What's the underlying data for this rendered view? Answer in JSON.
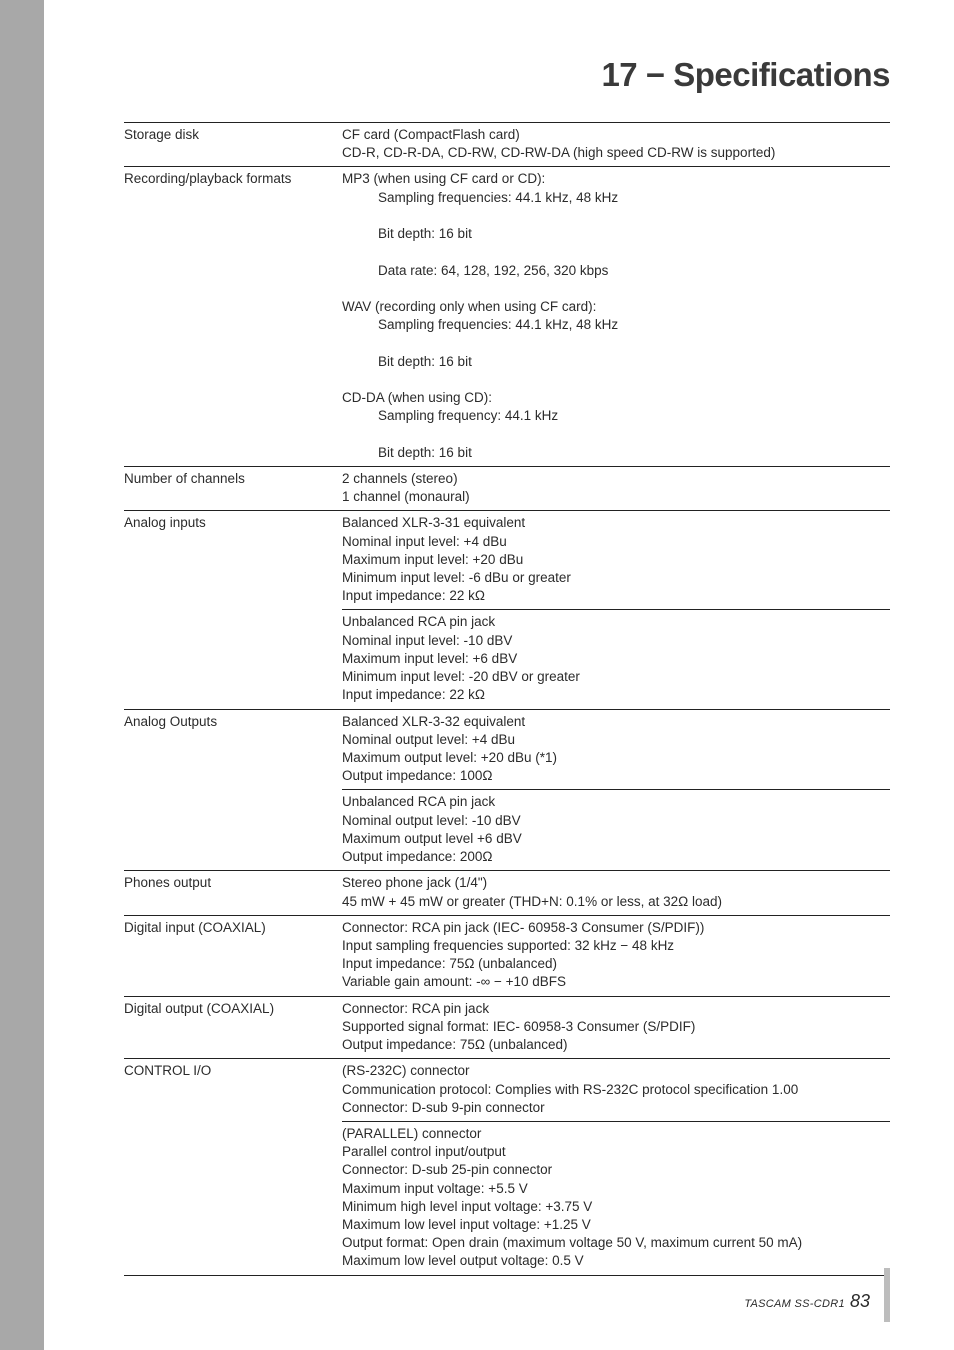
{
  "title": "17 − Specifications",
  "rows": [
    {
      "label": "Storage disk",
      "type": "top",
      "value": "CF card (CompactFlash card)\nCD-R, CD-R-DA, CD-RW, CD-RW-DA (high speed CD-RW is supported)"
    },
    {
      "label": "Recording/playback formats",
      "type": "top",
      "value": "MP3 (when using CF card or CD):\n<ind>Sampling frequencies: 44.1 kHz, 48 kHz</ind>\n<ind>Bit depth: 16 bit</ind>\n<ind>Data rate: 64, 128, 192, 256, 320 kbps</ind>\nWAV (recording only when using CF card):\n<ind>Sampling frequencies: 44.1 kHz, 48 kHz</ind>\n<ind>Bit depth: 16 bit</ind>\nCD-DA (when using CD):\n<ind>Sampling frequency: 44.1 kHz</ind>\n<ind>Bit depth: 16 bit</ind>"
    },
    {
      "label": "Number of channels",
      "type": "top",
      "value": "2 channels (stereo)\n1 channel (monaural)"
    },
    {
      "label": "Analog inputs",
      "type": "top",
      "value": "Balanced XLR-3-31 equivalent\nNominal input level: +4 dBu\nMaximum input level: +20 dBu\nMinimum input level: -6 dBu or greater\nInput impedance: 22 kΩ"
    },
    {
      "label": "",
      "type": "sub",
      "value": "Unbalanced RCA pin jack\nNominal input level: -10 dBV\nMaximum input level: +6 dBV\nMinimum input level: -20 dBV or greater\nInput impedance: 22 kΩ"
    },
    {
      "label": "Analog Outputs",
      "type": "top",
      "value": "Balanced XLR-3-32 equivalent\nNominal output level: +4 dBu\nMaximum output level: +20 dBu (*1)\nOutput impedance: 100Ω"
    },
    {
      "label": "",
      "type": "sub",
      "value": "Unbalanced RCA pin jack\nNominal output level: -10 dBV\nMaximum output level +6 dBV\nOutput impedance: 200Ω"
    },
    {
      "label": "Phones output",
      "type": "top",
      "value": "Stereo phone jack (1/4\")\n45 mW + 45 mW or greater (THD+N: 0.1% or less, at 32Ω load)"
    },
    {
      "label": "Digital input (COAXIAL)",
      "type": "top",
      "value": "Connector: RCA pin jack (IEC- 60958-3 Consumer (S/PDIF))\nInput sampling frequencies supported: 32 kHz − 48 kHz\nInput impedance: 75Ω (unbalanced)\nVariable gain amount: -∞ − +10 dBFS"
    },
    {
      "label": "Digital output  (COAXIAL)",
      "type": "top",
      "value": "Connector: RCA pin jack\nSupported signal format: IEC- 60958-3 Consumer (S/PDIF)\nOutput impedance: 75Ω (unbalanced)"
    },
    {
      "label": "CONTROL I/O",
      "type": "top",
      "value": "(RS-232C) connector\nCommunication protocol: Complies with RS-232C protocol specification 1.00\nConnector: D-sub 9-pin connector"
    },
    {
      "label": "",
      "type": "sub bottom",
      "value": "(PARALLEL) connector\nParallel control input/output\nConnector: D-sub 25-pin connector\nMaximum input voltage: +5.5 V\nMinimum high level input voltage: +3.75 V\nMaximum low level input voltage: +1.25 V\nOutput format: Open drain (maximum voltage 50 V, maximum current 50 mA)\nMaximum low level output voltage: 0.5 V"
    }
  ],
  "footer": {
    "brand": "TASCAM  SS-CDR1",
    "page": "83"
  }
}
